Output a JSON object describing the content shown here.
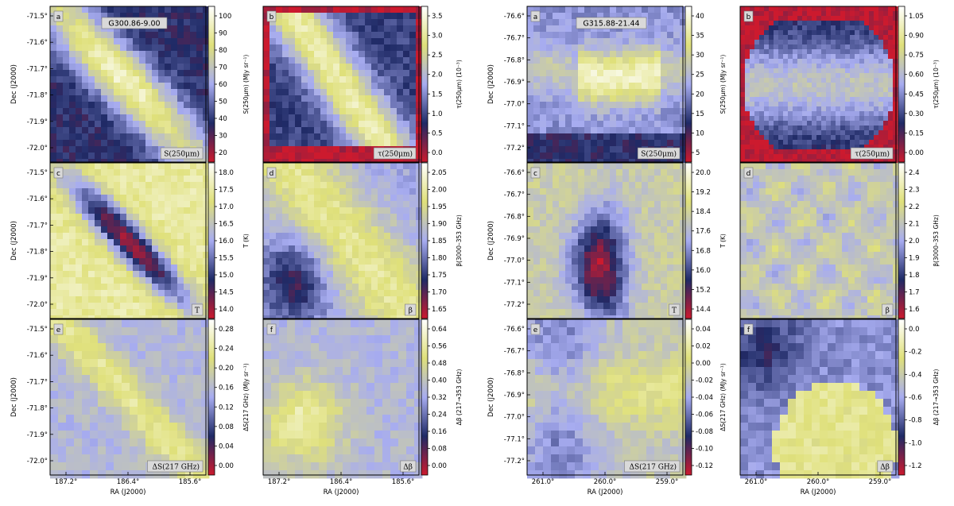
{
  "chart_data": {
    "type": "heatmap",
    "layout": "two fields side by side, each a 3x2 grid of map panels with colorbars",
    "colormap": [
      "#cc1a2e",
      "#1f2a66",
      "#a7acf0",
      "#dfe07a",
      "#ffffff"
    ],
    "colormap_name": "red-navy-lavender-yellow-white",
    "fields": [
      {
        "name": "G300.86-9.00",
        "xlabel": "RA (J2000)",
        "ylabel": "Dec (J2000)",
        "x_ticks": [
          "187.2°",
          "186.4°",
          "185.6°"
        ],
        "y_ticks": [
          "-71.5°",
          "-71.6°",
          "-71.7°",
          "-71.8°",
          "-71.9°",
          "-72.0°"
        ],
        "panels": [
          {
            "letter": "a",
            "inner_label": "S(250μm)",
            "colorbar_label": "S(250μm) (MJy sr⁻¹)",
            "ticks": [
              "20",
              "30",
              "40",
              "50",
              "60",
              "70",
              "80",
              "90",
              "100"
            ]
          },
          {
            "letter": "b",
            "inner_label": "τ(250μm)",
            "colorbar_label": "τ(250μm) (10⁻³)",
            "ticks": [
              "0.0",
              "0.5",
              "1.0",
              "1.5",
              "2.0",
              "2.5",
              "3.0",
              "3.5"
            ]
          },
          {
            "letter": "c",
            "inner_label": "T",
            "colorbar_label": "T (K)",
            "ticks": [
              "14.0",
              "14.5",
              "15.0",
              "15.5",
              "16.0",
              "16.5",
              "17.0",
              "17.5",
              "18.0"
            ]
          },
          {
            "letter": "d",
            "inner_label": "β",
            "colorbar_label": "β(3000–353 GHz)",
            "ticks": [
              "1.65",
              "1.70",
              "1.75",
              "1.80",
              "1.85",
              "1.90",
              "1.95",
              "2.00",
              "2.05"
            ]
          },
          {
            "letter": "e",
            "inner_label": "ΔS(217 GHz)",
            "colorbar_label": "ΔS(217 GHz) (MJy sr⁻¹)",
            "ticks": [
              "0.00",
              "0.04",
              "0.08",
              "0.12",
              "0.16",
              "0.20",
              "0.24",
              "0.28"
            ]
          },
          {
            "letter": "f",
            "inner_label": "Δβ",
            "colorbar_label": "Δβ (217→353 GHz)",
            "ticks": [
              "0.00",
              "0.08",
              "0.16",
              "0.24",
              "0.32",
              "0.40",
              "0.48",
              "0.56",
              "0.64"
            ]
          }
        ]
      },
      {
        "name": "G315.88-21.44",
        "xlabel": "RA (J2000)",
        "ylabel": "Dec (J2000)",
        "x_ticks": [
          "261.0°",
          "260.0°",
          "259.0°"
        ],
        "y_ticks": [
          "-76.6°",
          "-76.7°",
          "-76.8°",
          "-76.9°",
          "-77.0°",
          "-77.1°",
          "-77.2°"
        ],
        "panels": [
          {
            "letter": "a",
            "inner_label": "S(250μm)",
            "colorbar_label": "S(250μm) (MJy sr⁻¹)",
            "ticks": [
              "5",
              "10",
              "15",
              "20",
              "25",
              "30",
              "35",
              "40"
            ]
          },
          {
            "letter": "b",
            "inner_label": "τ(250μm)",
            "colorbar_label": "τ(250μm) (10⁻³)",
            "ticks": [
              "0.00",
              "0.15",
              "0.30",
              "0.45",
              "0.60",
              "0.75",
              "0.90",
              "1.05"
            ]
          },
          {
            "letter": "c",
            "inner_label": "T",
            "colorbar_label": "T (K)",
            "ticks": [
              "14.4",
              "15.2",
              "16.0",
              "16.8",
              "17.6",
              "18.4",
              "19.2",
              "20.0"
            ]
          },
          {
            "letter": "d",
            "inner_label": "β",
            "colorbar_label": "β(3000–353 GHz)",
            "ticks": [
              "1.6",
              "1.7",
              "1.8",
              "1.9",
              "2.0",
              "2.1",
              "2.2",
              "2.3",
              "2.4"
            ]
          },
          {
            "letter": "e",
            "inner_label": "ΔS(217 GHz)",
            "colorbar_label": "ΔS(217 GHz) (MJy sr⁻¹)",
            "ticks": [
              "-0.12",
              "-0.10",
              "-0.08",
              "-0.06",
              "-0.04",
              "-0.02",
              "0.00",
              "0.02",
              "0.04"
            ]
          },
          {
            "letter": "f",
            "inner_label": "Δβ",
            "colorbar_label": "Δβ (217→353 GHz)",
            "ticks": [
              "-1.2",
              "-1.0",
              "-0.8",
              "-0.6",
              "-0.4",
              "-0.2",
              "0.0"
            ]
          }
        ]
      }
    ]
  }
}
